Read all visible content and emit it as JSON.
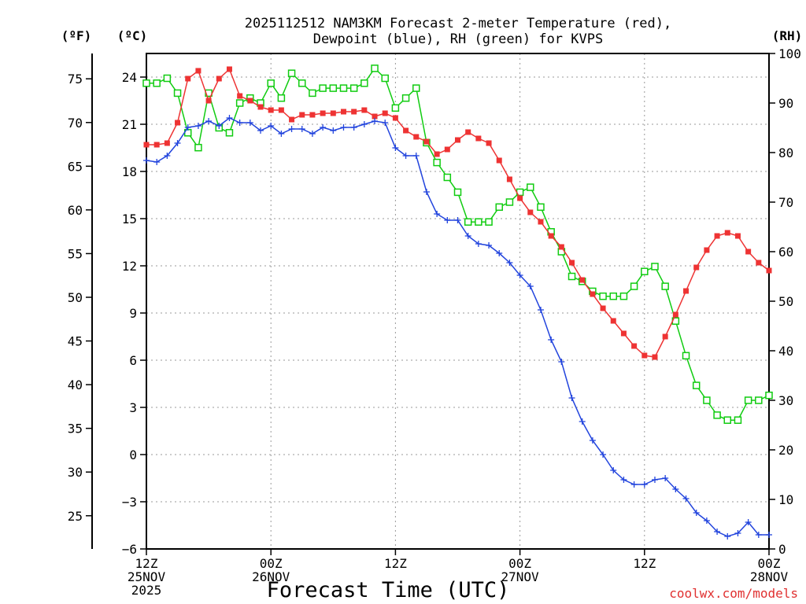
{
  "colors": {
    "temperature": "#ee3333",
    "dewpoint": "#2244dd",
    "rh": "#11cc11",
    "grid": "#999999",
    "credit": "#e03030"
  },
  "chart_data": {
    "type": "line",
    "title_line1": "2025112512 NAM3KM Forecast 2-meter Temperature (red),",
    "title_line2": "Dewpoint (blue), RH (green) for KVPS",
    "xlabel": "Forecast Time (UTC)",
    "credit": "coolwx.com/models",
    "x_unit": "forecast hour",
    "xlim": [
      0,
      60
    ],
    "ylim_c": [
      -6,
      25.5
    ],
    "ylim_rh": [
      0,
      100
    ],
    "left_axis_f": {
      "unit_label": "(ºF)",
      "ticks": [
        25,
        30,
        35,
        40,
        45,
        50,
        55,
        60,
        65,
        70,
        75
      ]
    },
    "left_axis_c": {
      "unit_label": "(ºC)",
      "ticks": [
        -6,
        -3,
        0,
        3,
        6,
        9,
        12,
        15,
        18,
        21,
        24
      ]
    },
    "right_axis": {
      "unit_label": "(RH)",
      "ticks": [
        0,
        10,
        20,
        30,
        40,
        50,
        60,
        70,
        80,
        90,
        100
      ]
    },
    "x_ticks": [
      {
        "hour": 0,
        "line1": "12Z",
        "line2": "25NOV",
        "line3": "2025"
      },
      {
        "hour": 12,
        "line1": "00Z",
        "line2": "26NOV",
        "line3": ""
      },
      {
        "hour": 24,
        "line1": "12Z",
        "line2": "",
        "line3": ""
      },
      {
        "hour": 36,
        "line1": "00Z",
        "line2": "27NOV",
        "line3": ""
      },
      {
        "hour": 48,
        "line1": "12Z",
        "line2": "",
        "line3": ""
      },
      {
        "hour": 60,
        "line1": "00Z",
        "line2": "28NOV",
        "line3": ""
      }
    ],
    "series": [
      {
        "name": "2-meter Temperature",
        "units": "C",
        "axis": "celsius",
        "marker": "filled-square",
        "points": [
          [
            0,
            19.7
          ],
          [
            1,
            19.7
          ],
          [
            2,
            19.8
          ],
          [
            3,
            21.1
          ],
          [
            4,
            23.9
          ],
          [
            5,
            24.4
          ],
          [
            6,
            22.5
          ],
          [
            7,
            23.9
          ],
          [
            8,
            24.5
          ],
          [
            9,
            22.8
          ],
          [
            10,
            22.5
          ],
          [
            11,
            22.1
          ],
          [
            12,
            21.9
          ],
          [
            13,
            21.9
          ],
          [
            14,
            21.3
          ],
          [
            15,
            21.6
          ],
          [
            16,
            21.6
          ],
          [
            17,
            21.7
          ],
          [
            18,
            21.7
          ],
          [
            19,
            21.8
          ],
          [
            20,
            21.8
          ],
          [
            21,
            21.9
          ],
          [
            22,
            21.5
          ],
          [
            23,
            21.7
          ],
          [
            24,
            21.4
          ],
          [
            25,
            20.6
          ],
          [
            26,
            20.2
          ],
          [
            27,
            19.9
          ],
          [
            28,
            19.1
          ],
          [
            29,
            19.4
          ],
          [
            30,
            20.0
          ],
          [
            31,
            20.5
          ],
          [
            32,
            20.1
          ],
          [
            33,
            19.8
          ],
          [
            34,
            18.7
          ],
          [
            35,
            17.5
          ],
          [
            36,
            16.3
          ],
          [
            37,
            15.4
          ],
          [
            38,
            14.8
          ],
          [
            39,
            13.9
          ],
          [
            40,
            13.2
          ],
          [
            41,
            12.2
          ],
          [
            42,
            11.1
          ],
          [
            43,
            10.2
          ],
          [
            44,
            9.3
          ],
          [
            45,
            8.5
          ],
          [
            46,
            7.7
          ],
          [
            47,
            6.9
          ],
          [
            48,
            6.3
          ],
          [
            49,
            6.2
          ],
          [
            50,
            7.5
          ],
          [
            51,
            8.9
          ],
          [
            52,
            10.4
          ],
          [
            53,
            11.9
          ],
          [
            54,
            13.0
          ],
          [
            55,
            13.9
          ],
          [
            56,
            14.1
          ],
          [
            57,
            13.9
          ],
          [
            58,
            12.9
          ],
          [
            59,
            12.2
          ],
          [
            60,
            11.7
          ]
        ]
      },
      {
        "name": "Dewpoint",
        "units": "C",
        "axis": "celsius",
        "marker": "plus",
        "points": [
          [
            0,
            18.7
          ],
          [
            1,
            18.6
          ],
          [
            2,
            19.0
          ],
          [
            3,
            19.8
          ],
          [
            4,
            20.8
          ],
          [
            5,
            20.9
          ],
          [
            6,
            21.2
          ],
          [
            7,
            20.9
          ],
          [
            8,
            21.4
          ],
          [
            9,
            21.1
          ],
          [
            10,
            21.1
          ],
          [
            11,
            20.6
          ],
          [
            12,
            20.9
          ],
          [
            13,
            20.4
          ],
          [
            14,
            20.7
          ],
          [
            15,
            20.7
          ],
          [
            16,
            20.4
          ],
          [
            17,
            20.8
          ],
          [
            18,
            20.6
          ],
          [
            19,
            20.8
          ],
          [
            20,
            20.8
          ],
          [
            21,
            21.0
          ],
          [
            22,
            21.2
          ],
          [
            23,
            21.1
          ],
          [
            24,
            19.5
          ],
          [
            25,
            19.0
          ],
          [
            26,
            19.0
          ],
          [
            27,
            16.7
          ],
          [
            28,
            15.3
          ],
          [
            29,
            14.9
          ],
          [
            30,
            14.9
          ],
          [
            31,
            13.9
          ],
          [
            32,
            13.4
          ],
          [
            33,
            13.3
          ],
          [
            34,
            12.8
          ],
          [
            35,
            12.2
          ],
          [
            36,
            11.4
          ],
          [
            37,
            10.7
          ],
          [
            38,
            9.2
          ],
          [
            39,
            7.3
          ],
          [
            40,
            5.9
          ],
          [
            41,
            3.6
          ],
          [
            42,
            2.1
          ],
          [
            43,
            0.9
          ],
          [
            44,
            0.0
          ],
          [
            45,
            -1.0
          ],
          [
            46,
            -1.6
          ],
          [
            47,
            -1.9
          ],
          [
            48,
            -1.9
          ],
          [
            49,
            -1.6
          ],
          [
            50,
            -1.5
          ],
          [
            51,
            -2.2
          ],
          [
            52,
            -2.8
          ],
          [
            53,
            -3.7
          ],
          [
            54,
            -4.2
          ],
          [
            55,
            -4.9
          ],
          [
            56,
            -5.2
          ],
          [
            57,
            -5.0
          ],
          [
            58,
            -4.3
          ],
          [
            59,
            -5.1
          ],
          [
            60,
            -5.1
          ]
        ]
      },
      {
        "name": "RH",
        "units": "%",
        "axis": "rh",
        "marker": "open-square",
        "points": [
          [
            0,
            94
          ],
          [
            1,
            94
          ],
          [
            2,
            95
          ],
          [
            3,
            92
          ],
          [
            4,
            84
          ],
          [
            5,
            81
          ],
          [
            6,
            92
          ],
          [
            7,
            85
          ],
          [
            8,
            84
          ],
          [
            9,
            90
          ],
          [
            10,
            91
          ],
          [
            11,
            90
          ],
          [
            12,
            94
          ],
          [
            13,
            91
          ],
          [
            14,
            96
          ],
          [
            15,
            94
          ],
          [
            16,
            92
          ],
          [
            17,
            93
          ],
          [
            18,
            93
          ],
          [
            19,
            93
          ],
          [
            20,
            93
          ],
          [
            21,
            94
          ],
          [
            22,
            97
          ],
          [
            23,
            95
          ],
          [
            24,
            89
          ],
          [
            25,
            91
          ],
          [
            26,
            93
          ],
          [
            27,
            82
          ],
          [
            28,
            78
          ],
          [
            29,
            75
          ],
          [
            30,
            72
          ],
          [
            31,
            66
          ],
          [
            32,
            66
          ],
          [
            33,
            66
          ],
          [
            34,
            69
          ],
          [
            35,
            70
          ],
          [
            36,
            72
          ],
          [
            37,
            73
          ],
          [
            38,
            69
          ],
          [
            39,
            64
          ],
          [
            40,
            60
          ],
          [
            41,
            55
          ],
          [
            42,
            54
          ],
          [
            43,
            52
          ],
          [
            44,
            51
          ],
          [
            45,
            51
          ],
          [
            46,
            51
          ],
          [
            47,
            53
          ],
          [
            48,
            56
          ],
          [
            49,
            57
          ],
          [
            50,
            53
          ],
          [
            51,
            46
          ],
          [
            52,
            39
          ],
          [
            53,
            33
          ],
          [
            54,
            30
          ],
          [
            55,
            27
          ],
          [
            56,
            26
          ],
          [
            57,
            26
          ],
          [
            58,
            30
          ],
          [
            59,
            30
          ],
          [
            60,
            31
          ]
        ]
      }
    ]
  }
}
